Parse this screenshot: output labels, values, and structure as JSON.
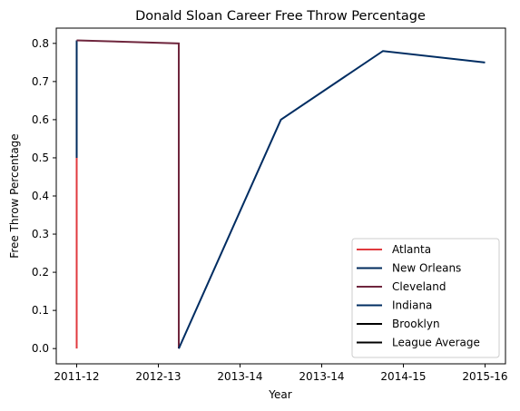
{
  "chart_data": {
    "type": "line",
    "title": "Donald Sloan  Career Free Throw Percentage",
    "xlabel": "Year",
    "ylabel": "Free Throw Percentage",
    "categories": [
      "2011-12",
      "2012-13",
      "2013-14",
      "2013-14",
      "2014-15",
      "2015-16"
    ],
    "ylim": [
      -0.04,
      0.84
    ],
    "yticks": [
      0.0,
      0.1,
      0.2,
      0.3,
      0.4,
      0.5,
      0.6,
      0.7,
      0.8
    ],
    "ytick_labels": [
      "0.0",
      "0.1",
      "0.2",
      "0.3",
      "0.4",
      "0.5",
      "0.6",
      "0.7",
      "0.8"
    ],
    "grid": false,
    "legend_position": "bottom-right",
    "series": [
      {
        "name": "Atlanta",
        "color": "#e03a3e",
        "points": [
          {
            "x": 0,
            "y": 0.0
          },
          {
            "x": 0,
            "y": 0.5
          }
        ]
      },
      {
        "name": "New Orleans",
        "color": "#002b5c",
        "points": [
          {
            "x": 0,
            "y": 0.5
          },
          {
            "x": 0,
            "y": 0.808
          }
        ]
      },
      {
        "name": "Cleveland",
        "color": "#6f263d",
        "points": [
          {
            "x": 0,
            "y": 0.808
          },
          {
            "x": 1.25,
            "y": 0.8
          },
          {
            "x": 1.25,
            "y": 0.0
          }
        ]
      },
      {
        "name": "Indiana",
        "color": "#002d62",
        "points": [
          {
            "x": 1.25,
            "y": 0.0
          },
          {
            "x": 2.5,
            "y": 0.6
          },
          {
            "x": 3.75,
            "y": 0.78
          },
          {
            "x": 5.0,
            "y": 0.75
          }
        ]
      },
      {
        "name": "Brooklyn",
        "color": "#000000",
        "points": []
      },
      {
        "name": "League Average",
        "color": "#000000",
        "points": []
      }
    ]
  }
}
